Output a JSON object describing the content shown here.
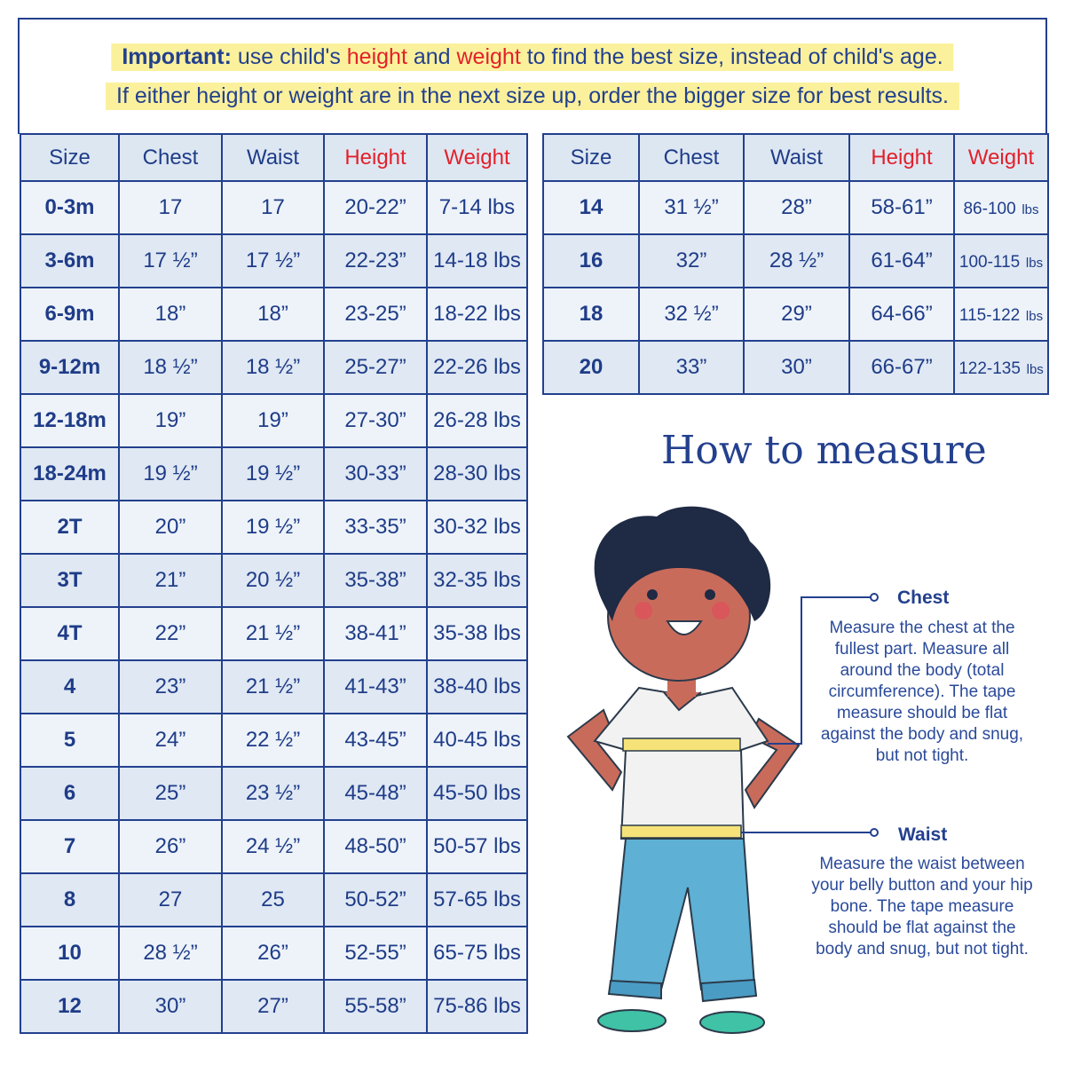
{
  "notice": {
    "line1": {
      "bold": "Important:",
      "a": " use child's ",
      "height": "height",
      "b": " and ",
      "weight": "weight",
      "c": " to find the best size, instead of child's age."
    },
    "line2": "If either height or weight are in the next size up, order the bigger size for best results."
  },
  "headers": [
    "Size",
    "Chest",
    "Waist",
    "Height",
    "Weight"
  ],
  "left_rows": [
    [
      "0-3m",
      "17",
      "17",
      "20-22”",
      "7-14 lbs"
    ],
    [
      "3-6m",
      "17 ½”",
      "17 ½”",
      "22-23”",
      "14-18 lbs"
    ],
    [
      "6-9m",
      "18”",
      "18”",
      "23-25”",
      "18-22 lbs"
    ],
    [
      "9-12m",
      "18 ½”",
      "18 ½”",
      "25-27”",
      "22-26 lbs"
    ],
    [
      "12-18m",
      "19”",
      "19”",
      "27-30”",
      "26-28 lbs"
    ],
    [
      "18-24m",
      "19 ½”",
      "19 ½”",
      "30-33”",
      "28-30 lbs"
    ],
    [
      "2T",
      "20”",
      "19 ½”",
      "33-35”",
      "30-32 lbs"
    ],
    [
      "3T",
      "21”",
      "20 ½”",
      "35-38”",
      "32-35 lbs"
    ],
    [
      "4T",
      "22”",
      "21 ½”",
      "38-41”",
      "35-38 lbs"
    ],
    [
      "4",
      "23”",
      "21 ½”",
      "41-43”",
      "38-40 lbs"
    ],
    [
      "5",
      "24”",
      "22 ½”",
      "43-45”",
      "40-45 lbs"
    ],
    [
      "6",
      "25”",
      "23 ½”",
      "45-48”",
      "45-50 lbs"
    ],
    [
      "7",
      "26”",
      "24 ½”",
      "48-50”",
      "50-57 lbs"
    ],
    [
      "8",
      "27",
      "25",
      "50-52”",
      "57-65 lbs"
    ],
    [
      "10",
      "28 ½”",
      "26”",
      "52-55”",
      "65-75 lbs"
    ],
    [
      "12",
      "30”",
      "27”",
      "55-58”",
      "75-86 lbs"
    ]
  ],
  "right_rows": [
    [
      "14",
      "31 ½”",
      "28”",
      "58-61”",
      "86-100",
      "lbs"
    ],
    [
      "16",
      "32”",
      "28 ½”",
      "61-64”",
      "100-115",
      "lbs"
    ],
    [
      "18",
      "32 ½”",
      "29”",
      "64-66”",
      "115-122",
      "lbs"
    ],
    [
      "20",
      "33”",
      "30”",
      "66-67”",
      "122-135",
      "lbs"
    ]
  ],
  "how": {
    "title": "How to measure",
    "chest_title": "Chest",
    "chest_text": "Measure the chest at the fullest part. Measure all around the body (total circumference). The tape measure should be flat against the body and snug, but not tight.",
    "waist_title": "Waist",
    "waist_text": "Measure the waist between your belly button and your hip bone. The tape measure should be flat against the body and snug, but not tight."
  }
}
